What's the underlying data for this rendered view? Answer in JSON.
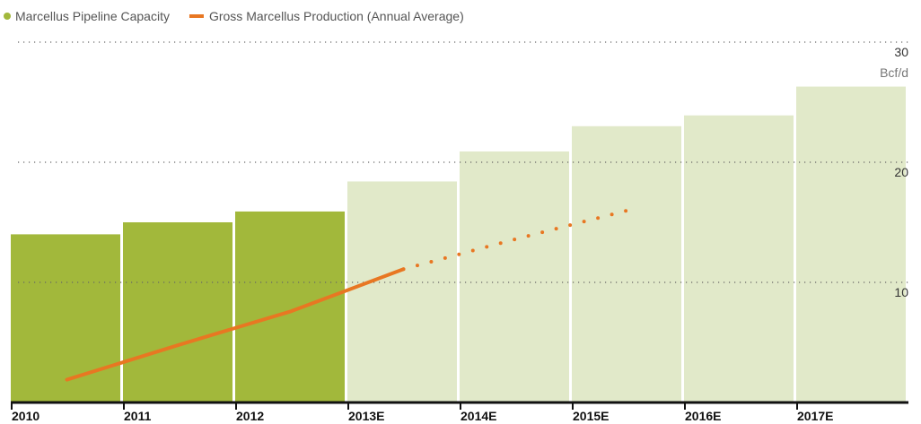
{
  "chart_data": {
    "type": "bar",
    "categories": [
      "2010",
      "2011",
      "2012",
      "2013E",
      "2014E",
      "2015E",
      "2016E",
      "2017E"
    ],
    "series": [
      {
        "name": "Marcellus Pipeline Capacity",
        "type": "bar",
        "color": "#a2b83b",
        "colors": [
          "#a2b83b",
          "#a2b83b",
          "#a2b83b",
          "#e1e9c9",
          "#e1e9c9",
          "#e1e9c9",
          "#e1e9c9",
          "#e1e9c9"
        ],
        "values": [
          14.0,
          15.0,
          15.9,
          18.4,
          20.9,
          23.0,
          23.9,
          26.3
        ]
      },
      {
        "name": "Gross Marcellus Production (Annual Average)",
        "type": "line",
        "color": "#e87722",
        "dotted_from": 3,
        "values": [
          1.9,
          4.8,
          7.6,
          11.1,
          13.6,
          16.0,
          null,
          null
        ]
      }
    ],
    "y_label": "Bcf/d",
    "ylim": [
      0,
      30
    ],
    "yticks": [
      10,
      20,
      30
    ],
    "grid": true,
    "legend": "top-left"
  }
}
